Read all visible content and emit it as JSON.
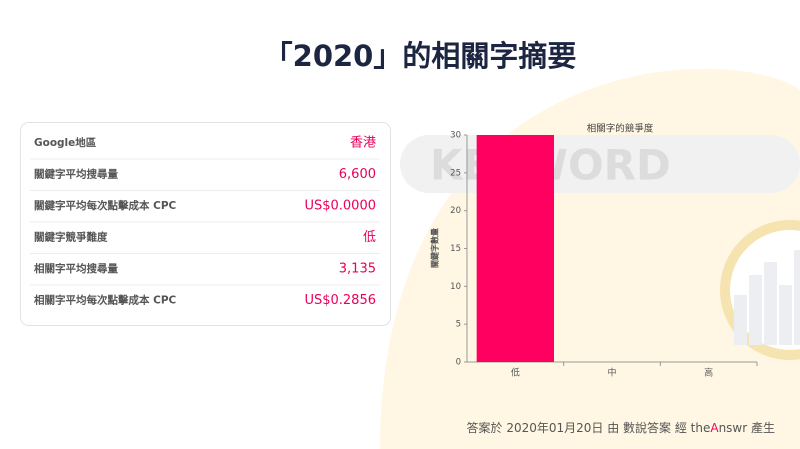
{
  "header": {
    "title": "「2020」的相關字摘要"
  },
  "watermark": "KEYWORD",
  "table": {
    "rows": [
      [
        "Google地區",
        "香港"
      ],
      [
        "關鍵字平均搜尋量",
        "6,600"
      ],
      [
        "關鍵字平均每次點擊成本 CPC",
        "US$0.0000"
      ],
      [
        "關鍵字競爭難度",
        "低"
      ],
      [
        "相關字平均搜尋量",
        "3,135"
      ],
      [
        "相關字平均每次點擊成本 CPC",
        "US$0.2856"
      ]
    ]
  },
  "chart_data": {
    "type": "bar",
    "title": "相關字的競爭度",
    "y_label": "關鍵字數量",
    "categories": [
      "低",
      "中",
      "高"
    ],
    "values": [
      30,
      0,
      0
    ],
    "color": "#ff0060",
    "ylim": [
      0,
      30
    ],
    "yticks": [
      0,
      5,
      10,
      15,
      20,
      25,
      30
    ]
  },
  "footer": {
    "parts": [
      "答案於 2020年01月20日 由 數說答案 經 the",
      "A",
      "nswr 產生"
    ]
  }
}
